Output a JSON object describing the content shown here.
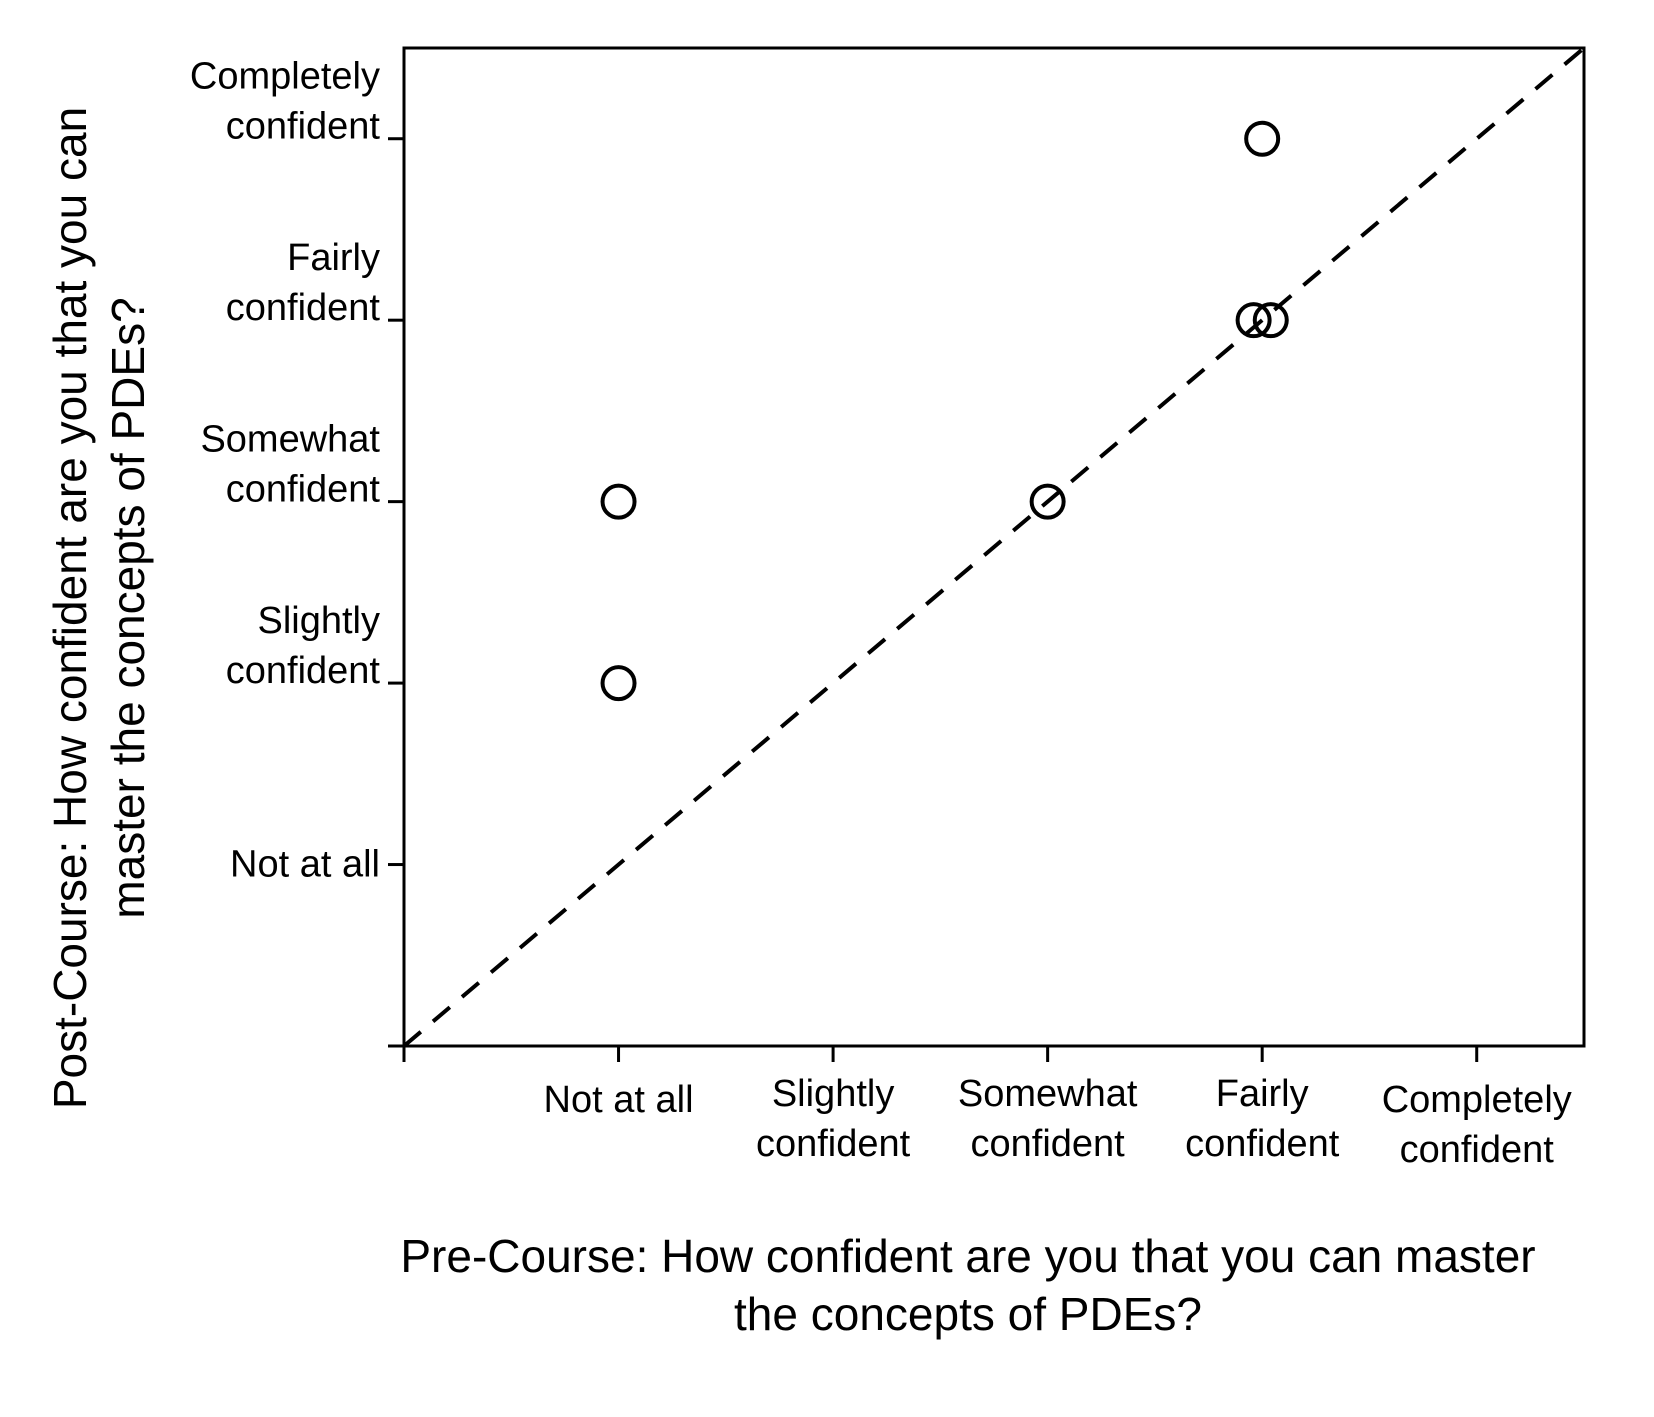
{
  "chart_data": {
    "type": "scatter",
    "title": "",
    "xlabel_lines": [
      "Pre-Course: How confident are you that you can master",
      "the concepts of PDEs?"
    ],
    "ylabel_lines": [
      "Post-Course: How confident are you that you can",
      "master the concepts of PDEs?"
    ],
    "xlim": [
      0,
      5.5
    ],
    "ylim": [
      0,
      5.5
    ],
    "x_ticks": [
      {
        "value": 0,
        "lines": []
      },
      {
        "value": 1,
        "lines": [
          "Not at all"
        ]
      },
      {
        "value": 2,
        "lines": [
          "Slightly",
          "confident"
        ]
      },
      {
        "value": 3,
        "lines": [
          "Somewhat",
          "confident"
        ]
      },
      {
        "value": 4,
        "lines": [
          "Fairly",
          "confident"
        ]
      },
      {
        "value": 5,
        "lines": [
          "Completely",
          "confident"
        ]
      }
    ],
    "y_ticks": [
      {
        "value": 0,
        "lines": []
      },
      {
        "value": 1,
        "lines": [
          "Not at all"
        ]
      },
      {
        "value": 2,
        "lines": [
          "Slightly",
          "confident"
        ]
      },
      {
        "value": 3,
        "lines": [
          "Somewhat",
          "confident"
        ]
      },
      {
        "value": 4,
        "lines": [
          "Fairly",
          "confident"
        ]
      },
      {
        "value": 5,
        "lines": [
          "Completely",
          "confident"
        ]
      }
    ],
    "points": [
      {
        "x": 4,
        "y": 5
      },
      {
        "x": 3.96,
        "y": 4
      },
      {
        "x": 4.04,
        "y": 4
      },
      {
        "x": 3,
        "y": 3
      },
      {
        "x": 1,
        "y": 3
      },
      {
        "x": 1,
        "y": 2
      }
    ],
    "reference_line": {
      "style": "dashed",
      "from": [
        0,
        0
      ],
      "to": [
        5.5,
        5.5
      ]
    },
    "marker": "open-circle",
    "grid": false,
    "legend": "none",
    "colors": {
      "ink": "#000000",
      "background": "#ffffff"
    }
  }
}
